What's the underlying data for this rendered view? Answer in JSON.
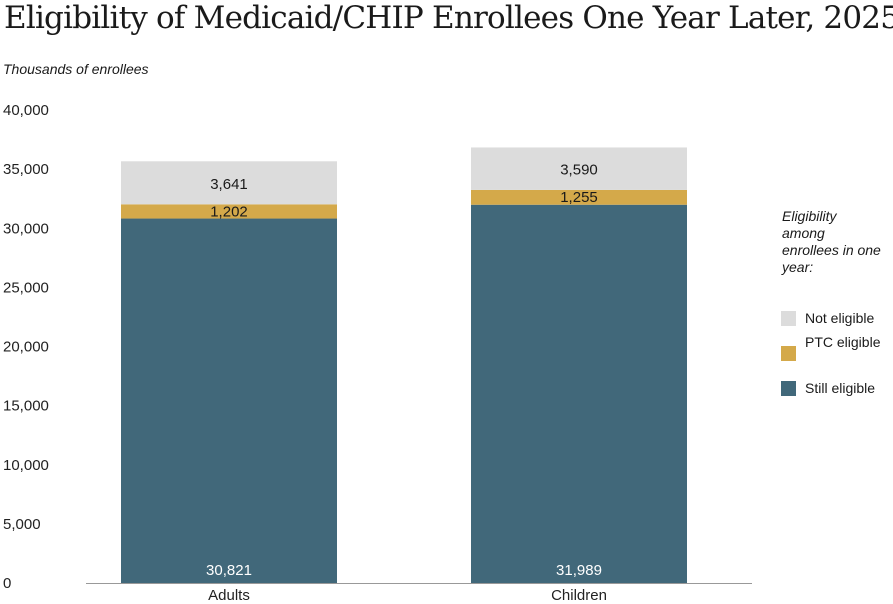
{
  "chart_data": {
    "type": "bar",
    "stacked": true,
    "title": "Eligibility of Medicaid/CHIP Enrollees One Year Later, 2025",
    "ylabel": "Thousands of enrollees",
    "xlabel": "",
    "ylim": [
      0,
      40000
    ],
    "yticks": [
      0,
      5000,
      10000,
      15000,
      20000,
      25000,
      30000,
      35000,
      40000
    ],
    "ytick_labels": [
      "0",
      "5,000",
      "10,000",
      "15,000",
      "20,000",
      "25,000",
      "30,000",
      "35,000",
      "40,000"
    ],
    "categories": [
      "Adults",
      "Children"
    ],
    "series": [
      {
        "name": "Still eligible",
        "color": "#41687a",
        "values": [
          30821,
          31989
        ],
        "labels": [
          "30,821",
          "31,989"
        ]
      },
      {
        "name": "PTC eligible",
        "color": "#d4a94a",
        "values": [
          1202,
          1255
        ],
        "labels": [
          "1,202",
          "1,255"
        ]
      },
      {
        "name": "Not eligible",
        "color": "#dcdcdc",
        "values": [
          3641,
          3590
        ],
        "labels": [
          "3,641",
          "3,590"
        ]
      }
    ],
    "legend": {
      "title": "Eligibility among enrollees in one year:",
      "position": "right",
      "items": [
        {
          "label": "Not eligible",
          "color": "#dcdcdc"
        },
        {
          "label": "PTC eligible",
          "color": "#d4a94a"
        },
        {
          "label": "Still eligible",
          "color": "#41687a"
        }
      ]
    },
    "grid": false
  }
}
